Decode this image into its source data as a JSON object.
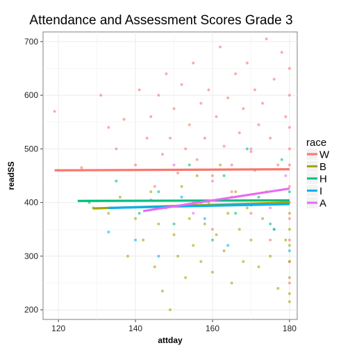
{
  "chart_data": {
    "type": "scatter",
    "title": "Attendance and Assessment Scores Grade 3",
    "xlabel": "attday",
    "ylabel": "readSS",
    "xlim": [
      116,
      182
    ],
    "ylim": [
      182,
      718
    ],
    "x_ticks": [
      120,
      140,
      160,
      180
    ],
    "y_ticks": [
      200,
      300,
      400,
      500,
      600,
      700
    ],
    "grid": true,
    "legend": {
      "title": "race",
      "placement": "right"
    },
    "series": [
      {
        "name": "W",
        "color": "#F8766D",
        "fit": {
          "x": [
            119,
            180
          ],
          "y": [
            460,
            462
          ]
        },
        "points": [
          [
            119,
            570
          ],
          [
            126,
            465
          ],
          [
            131,
            600
          ],
          [
            133,
            540
          ],
          [
            135,
            500
          ],
          [
            137,
            555
          ],
          [
            140,
            470
          ],
          [
            141,
            610
          ],
          [
            143,
            520
          ],
          [
            144,
            560
          ],
          [
            145,
            430
          ],
          [
            146,
            600
          ],
          [
            147,
            490
          ],
          [
            148,
            640
          ],
          [
            149,
            520
          ],
          [
            150,
            575
          ],
          [
            151,
            455
          ],
          [
            152,
            620
          ],
          [
            153,
            500
          ],
          [
            154,
            545
          ],
          [
            155,
            660
          ],
          [
            156,
            480
          ],
          [
            157,
            585
          ],
          [
            158,
            520
          ],
          [
            159,
            610
          ],
          [
            160,
            450
          ],
          [
            161,
            560
          ],
          [
            162,
            690
          ],
          [
            163,
            505
          ],
          [
            164,
            595
          ],
          [
            165,
            470
          ],
          [
            166,
            640
          ],
          [
            167,
            530
          ],
          [
            168,
            575
          ],
          [
            169,
            660
          ],
          [
            170,
            495
          ],
          [
            171,
            610
          ],
          [
            172,
            545
          ],
          [
            173,
            585
          ],
          [
            174,
            705
          ],
          [
            175,
            520
          ],
          [
            176,
            630
          ],
          [
            177,
            470
          ],
          [
            178,
            680
          ],
          [
            179,
            560
          ],
          [
            180,
            650
          ],
          [
            180,
            600
          ],
          [
            180,
            540
          ],
          [
            180,
            500
          ],
          [
            180,
            470
          ],
          [
            180,
            430
          ],
          [
            180,
            400
          ],
          [
            180,
            370
          ],
          [
            180,
            330
          ],
          [
            180,
            290
          ],
          [
            180,
            250
          ],
          [
            165,
            420
          ],
          [
            170,
            380
          ],
          [
            160,
            350
          ],
          [
            155,
            400
          ],
          [
            175,
            330
          ]
        ]
      },
      {
        "name": "B",
        "color": "#A3A500",
        "fit": {
          "x": [
            129,
            180
          ],
          "y": [
            389,
            400
          ]
        },
        "points": [
          [
            129,
            390
          ],
          [
            133,
            380
          ],
          [
            136,
            410
          ],
          [
            138,
            300
          ],
          [
            140,
            370
          ],
          [
            142,
            330
          ],
          [
            144,
            420
          ],
          [
            145,
            280
          ],
          [
            146,
            360
          ],
          [
            147,
            235
          ],
          [
            148,
            390
          ],
          [
            149,
            200
          ],
          [
            150,
            340
          ],
          [
            151,
            300
          ],
          [
            152,
            430
          ],
          [
            153,
            260
          ],
          [
            154,
            370
          ],
          [
            155,
            320
          ],
          [
            156,
            450
          ],
          [
            157,
            290
          ],
          [
            158,
            360
          ],
          [
            159,
            400
          ],
          [
            160,
            270
          ],
          [
            161,
            340
          ],
          [
            162,
            470
          ],
          [
            163,
            310
          ],
          [
            164,
            380
          ],
          [
            165,
            250
          ],
          [
            166,
            420
          ],
          [
            167,
            350
          ],
          [
            168,
            290
          ],
          [
            169,
            390
          ],
          [
            170,
            330
          ],
          [
            171,
            460
          ],
          [
            172,
            280
          ],
          [
            173,
            370
          ],
          [
            174,
            420
          ],
          [
            175,
            300
          ],
          [
            176,
            350
          ],
          [
            177,
            240
          ],
          [
            178,
            400
          ],
          [
            179,
            330
          ],
          [
            180,
            380
          ],
          [
            180,
            350
          ],
          [
            180,
            320
          ],
          [
            180,
            290
          ],
          [
            180,
            260
          ],
          [
            180,
            230
          ],
          [
            180,
            215
          ]
        ]
      },
      {
        "name": "H",
        "color": "#00BF7D",
        "fit": {
          "x": [
            125,
            180
          ],
          "y": [
            403,
            404
          ]
        },
        "points": [
          [
            128,
            400
          ],
          [
            135,
            440
          ],
          [
            141,
            380
          ],
          [
            146,
            420
          ],
          [
            150,
            360
          ],
          [
            154,
            470
          ],
          [
            157,
            400
          ],
          [
            160,
            330
          ],
          [
            163,
            450
          ],
          [
            166,
            380
          ],
          [
            169,
            500
          ],
          [
            172,
            410
          ],
          [
            175,
            360
          ],
          [
            178,
            480
          ],
          [
            180,
            420
          ]
        ]
      },
      {
        "name": "I",
        "color": "#00B0F6",
        "fit": {
          "x": [
            133,
            180
          ],
          "y": [
            390,
            397
          ]
        },
        "points": [
          [
            133,
            345
          ],
          [
            140,
            330
          ],
          [
            146,
            300
          ],
          [
            152,
            410
          ],
          [
            158,
            370
          ],
          [
            164,
            320
          ],
          [
            170,
            395
          ],
          [
            176,
            350
          ],
          [
            180,
            310
          ]
        ]
      },
      {
        "name": "A",
        "color": "#E76BF3",
        "fit": {
          "x": [
            142,
            180
          ],
          "y": [
            384,
            426
          ]
        },
        "points": [
          [
            144,
            405
          ],
          [
            150,
            470
          ],
          [
            155,
            380
          ],
          [
            160,
            440
          ],
          [
            165,
            410
          ],
          [
            170,
            500
          ],
          [
            175,
            390
          ],
          [
            179,
            450
          ]
        ]
      }
    ]
  }
}
